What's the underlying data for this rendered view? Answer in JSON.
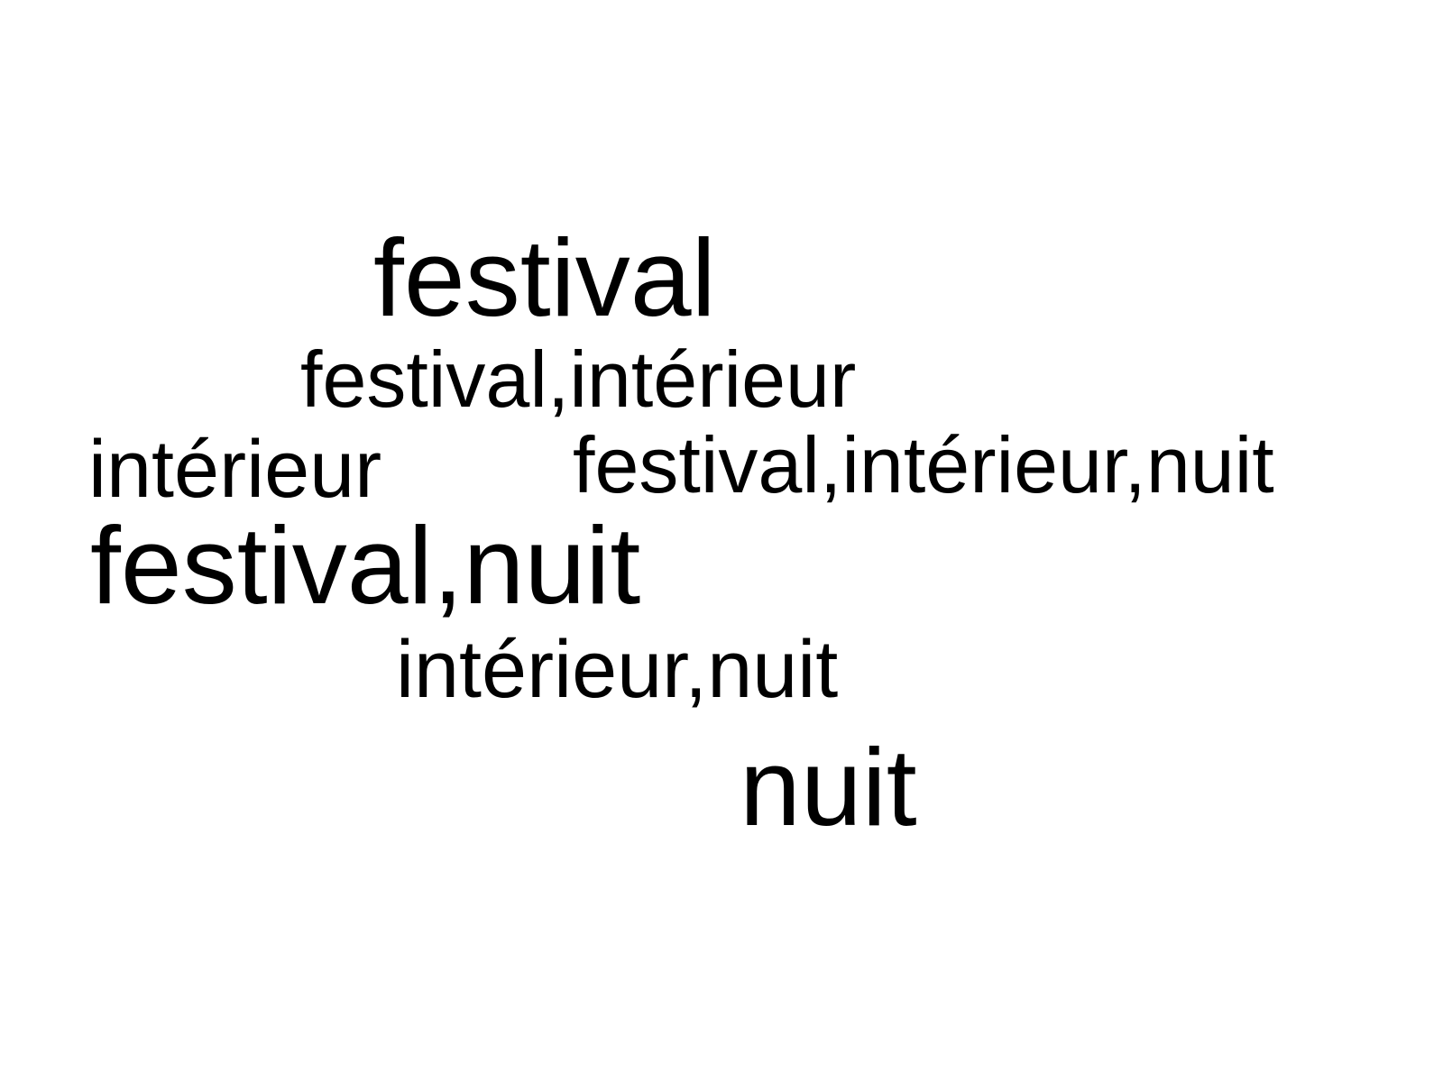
{
  "background_color": "#ffffff",
  "text_color": "#000000",
  "words": [
    {
      "text": "festival"
    },
    {
      "text": "festival,intérieur"
    },
    {
      "text": "intérieur"
    },
    {
      "text": "festival,intérieur,nuit"
    },
    {
      "text": "festival,nuit"
    },
    {
      "text": "intérieur,nuit"
    },
    {
      "text": "nuit"
    }
  ]
}
